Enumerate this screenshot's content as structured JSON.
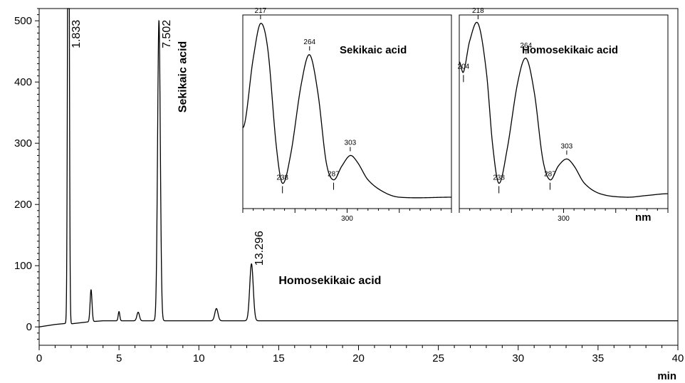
{
  "chart_data": [
    {
      "type": "line",
      "xlabel": "min",
      "ylabel": "",
      "xlim": [
        0,
        40
      ],
      "ylim": [
        -30,
        520
      ],
      "x_ticks": [
        0,
        5,
        10,
        15,
        20,
        25,
        30,
        35,
        40
      ],
      "x_tick_labels": [
        "0",
        "5",
        "10",
        "15",
        "20",
        "25",
        "30",
        "35",
        "40"
      ],
      "y_ticks": [
        0,
        100,
        200,
        300,
        400,
        500
      ],
      "y_tick_labels": [
        "0",
        "100",
        "200",
        "300",
        "400",
        "500"
      ],
      "grid": false,
      "series": [
        {
          "baseline": [
            [
              0,
              0
            ],
            [
              1.0,
              4
            ],
            [
              1.8,
              6
            ],
            [
              2.0,
              5
            ],
            [
              3.0,
              8
            ],
            [
              4.0,
              10
            ],
            [
              10,
              10
            ],
            [
              20,
              10
            ],
            [
              30,
              10
            ],
            [
              40,
              10
            ]
          ],
          "peaks": [
            {
              "rt": 1.833,
              "height": 1000,
              "width": 0.05
            },
            {
              "rt": 3.25,
              "height": 52,
              "width": 0.06
            },
            {
              "rt": 5.0,
              "height": 15,
              "width": 0.05
            },
            {
              "rt": 6.2,
              "height": 14,
              "width": 0.08
            },
            {
              "rt": 7.502,
              "height": 490,
              "width": 0.085
            },
            {
              "rt": 11.1,
              "height": 20,
              "width": 0.1
            },
            {
              "rt": 13.296,
              "height": 93,
              "width": 0.11
            }
          ]
        }
      ],
      "peak_labels": [
        {
          "rt": 1.833,
          "text": "1.833",
          "y": 455
        },
        {
          "rt": 7.502,
          "text": "7.502",
          "y": 455
        },
        {
          "rt": 13.296,
          "text": "13.296",
          "y": 100
        }
      ],
      "annotations": [
        {
          "text": "Sekikaic acid",
          "x": 9.2,
          "y": 350,
          "rotate": -90
        },
        {
          "text": "Homosekikaic acid",
          "x": 15.0,
          "y": 70,
          "rotate": 0
        }
      ]
    },
    {
      "type": "line",
      "title": "Sekikaic acid",
      "xlim": [
        200,
        400
      ],
      "x_tick_labels": [
        "300"
      ],
      "points": [
        [
          200,
          0.4
        ],
        [
          210,
          0.8
        ],
        [
          217,
          1.0
        ],
        [
          224,
          0.85
        ],
        [
          232,
          0.3
        ],
        [
          238,
          0.08
        ],
        [
          246,
          0.25
        ],
        [
          256,
          0.65
        ],
        [
          264,
          0.82
        ],
        [
          272,
          0.6
        ],
        [
          280,
          0.2
        ],
        [
          287,
          0.1
        ],
        [
          295,
          0.18
        ],
        [
          303,
          0.24
        ],
        [
          310,
          0.2
        ],
        [
          320,
          0.1
        ],
        [
          335,
          0.03
        ],
        [
          350,
          0.0
        ],
        [
          400,
          0.0
        ]
      ],
      "peak_labels": [
        {
          "x": 217,
          "text": "217"
        },
        {
          "x": 238,
          "text": "238"
        },
        {
          "x": 264,
          "text": "264"
        },
        {
          "x": 287,
          "text": "287"
        },
        {
          "x": 303,
          "text": "303"
        }
      ]
    },
    {
      "type": "line",
      "title": "Homosekikaic acid",
      "xlabel": "nm",
      "xlim": [
        200,
        400
      ],
      "x_tick_labels": [
        "300"
      ],
      "points": [
        [
          200,
          0.78
        ],
        [
          204,
          0.72
        ],
        [
          210,
          0.9
        ],
        [
          218,
          1.0
        ],
        [
          226,
          0.72
        ],
        [
          232,
          0.3
        ],
        [
          238,
          0.08
        ],
        [
          246,
          0.28
        ],
        [
          256,
          0.66
        ],
        [
          264,
          0.8
        ],
        [
          272,
          0.6
        ],
        [
          280,
          0.22
        ],
        [
          287,
          0.1
        ],
        [
          295,
          0.18
        ],
        [
          303,
          0.22
        ],
        [
          310,
          0.18
        ],
        [
          320,
          0.08
        ],
        [
          335,
          0.02
        ],
        [
          360,
          0.0
        ],
        [
          380,
          0.01
        ],
        [
          400,
          0.02
        ]
      ],
      "peak_labels": [
        {
          "x": 204,
          "text": "204"
        },
        {
          "x": 218,
          "text": "218"
        },
        {
          "x": 238,
          "text": "238"
        },
        {
          "x": 264,
          "text": "264"
        },
        {
          "x": 287,
          "text": "287"
        },
        {
          "x": 303,
          "text": "303"
        }
      ]
    }
  ]
}
